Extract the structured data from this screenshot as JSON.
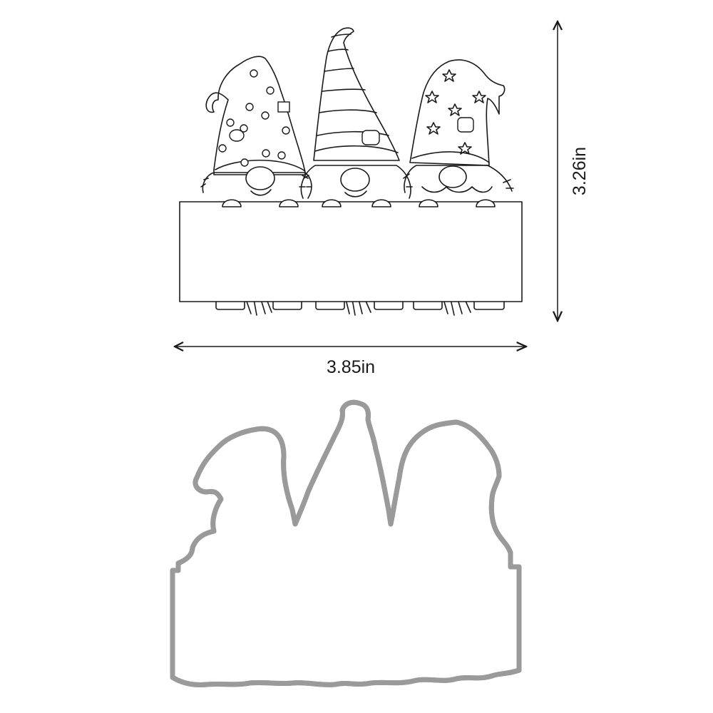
{
  "dimensions": {
    "height_label": "3.26in",
    "width_label": "3.85in"
  },
  "colors": {
    "ink": "#1a1a1a",
    "die_outer": "#9a9a9a",
    "die_inner": "#c8c8c8",
    "background": "#ffffff"
  }
}
